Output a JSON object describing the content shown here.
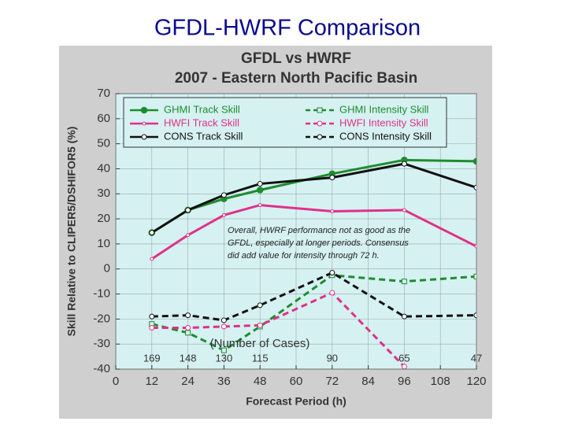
{
  "slide_title": "GFDL-HWRF Comparison",
  "chart_data": {
    "type": "line",
    "title": "GFDL vs HWRF",
    "subtitle": "2007 - Eastern North Pacific Basin",
    "x_label": "Forecast Period (h)",
    "y_label": "Skill Relative to CLIPER5/DSHIFOR5 (%)",
    "x": [
      12,
      24,
      36,
      48,
      72,
      96,
      120
    ],
    "xlim": [
      0,
      120
    ],
    "xticks": [
      0,
      12,
      24,
      36,
      48,
      60,
      72,
      84,
      96,
      108,
      120
    ],
    "ylim": [
      -40,
      70
    ],
    "yticks": [
      -40,
      -30,
      -20,
      -10,
      0,
      10,
      20,
      30,
      40,
      50,
      60,
      70
    ],
    "grid": true,
    "series": [
      {
        "name": "GHMI Track Skill",
        "color": "#1e8c2e",
        "dashed": false,
        "marker": "filled-circle",
        "values": [
          14.5,
          23.5,
          28,
          31.5,
          38,
          43.5,
          43
        ]
      },
      {
        "name": "HWFI Track Skill",
        "color": "#e0308a",
        "dashed": false,
        "marker": "small",
        "values": [
          4,
          13.5,
          21.5,
          25.5,
          23,
          23.5,
          9
        ]
      },
      {
        "name": "CONS Track Skill",
        "color": "#111111",
        "dashed": false,
        "marker": "open-circle",
        "values": [
          14.5,
          23.5,
          29.5,
          34,
          36.5,
          42,
          32.5
        ]
      },
      {
        "name": "GHMI Intensity Skill",
        "color": "#1e8c2e",
        "dashed": true,
        "marker": "square",
        "values": [
          -22,
          -25.5,
          -32.5,
          -23,
          -2.5,
          -5,
          -3
        ]
      },
      {
        "name": "HWFI Intensity Skill",
        "color": "#e0308a",
        "dashed": true,
        "marker": "open-circle",
        "values": [
          -23.5,
          -23.5,
          -23,
          -22.5,
          -9.5,
          -39,
          null
        ]
      },
      {
        "name": "CONS Intensity Skill",
        "color": "#111111",
        "dashed": true,
        "marker": "open-circle",
        "values": [
          -19,
          -18.5,
          -20.5,
          -14.5,
          -1.5,
          -19,
          -18.5
        ]
      }
    ],
    "cases_label": "(Number of Cases)",
    "cases": [
      169,
      148,
      130,
      115,
      90,
      65,
      47
    ],
    "annotation": [
      "Overall, HWRF performance not as good as the",
      "GFDL, especially at longer periods.  Consensus",
      "did add value for intensity through 72 h."
    ]
  }
}
